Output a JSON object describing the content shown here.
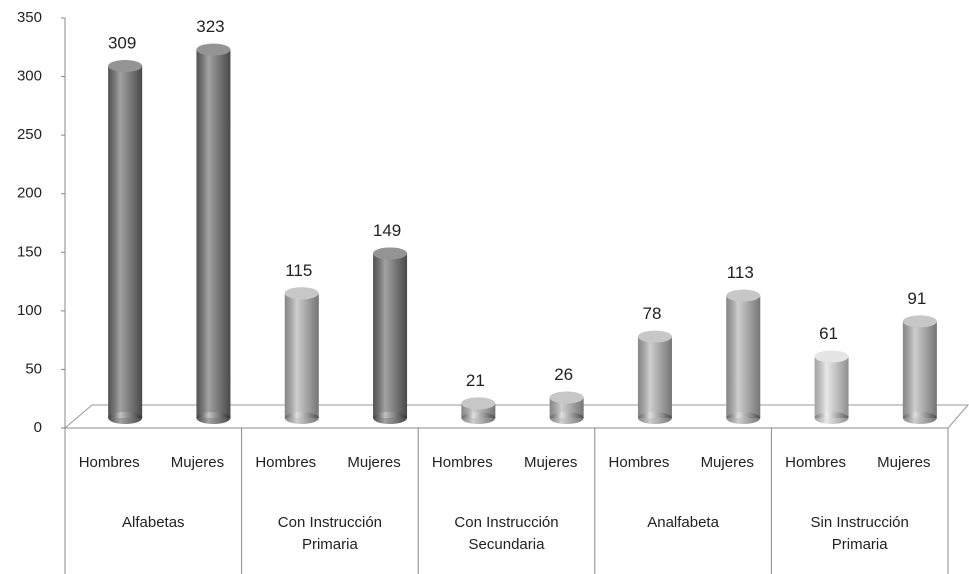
{
  "chart_data": {
    "type": "bar",
    "categories": [
      "Hombres",
      "Mujeres",
      "Hombres",
      "Mujeres",
      "Hombres",
      "Mujeres",
      "Hombres",
      "Mujeres",
      "Hombres",
      "Mujeres"
    ],
    "groups": [
      "Alfabetas",
      "Con Instrucción Primaria",
      "Con Instrucción Secundaria",
      "Analfabeta",
      "Sin Instrucción Primaria"
    ],
    "values": [
      309,
      323,
      115,
      149,
      21,
      26,
      78,
      113,
      61,
      91
    ],
    "colors": [
      "#707070",
      "#707070",
      "#b4b4b4",
      "#707070",
      "#b4b4b4",
      "#b4b4b4",
      "#b4b4b4",
      "#b4b4b4",
      "#dcdcdc",
      "#b4b4b4"
    ],
    "ylim": [
      0,
      350
    ],
    "yticks": [
      0,
      50,
      100,
      150,
      200,
      250,
      300,
      350
    ],
    "grid": false
  }
}
